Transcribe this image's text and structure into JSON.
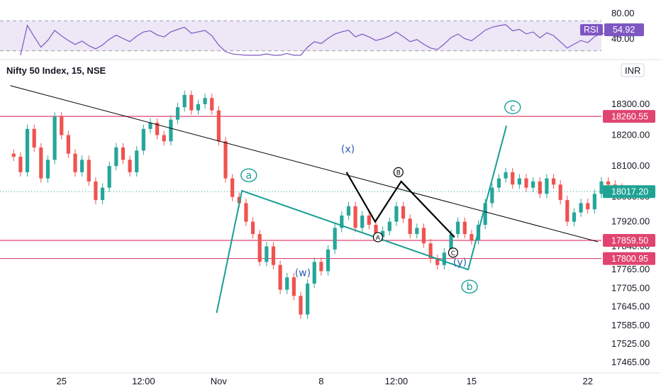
{
  "header": {
    "title": "Nifty 50 Index, 15, NSE",
    "currency": "INR"
  },
  "rsi_panel": {
    "label": "RSI",
    "value": "54.92",
    "levels": [
      "80.00",
      "40.00"
    ],
    "level_values": [
      80,
      40
    ],
    "band": [
      70,
      30
    ],
    "ylim": [
      22,
      96
    ]
  },
  "colors": {
    "up": "#26a69a",
    "down": "#ef5350",
    "wave": "#179e95",
    "wave_label_blue": "#2a5bb0",
    "trendline": "#000000",
    "level_line": "#e0446f",
    "rsi_line": "#7e57c2",
    "rsi_band": "#ede7f6",
    "last_price_badge": "#1fa394"
  },
  "chart_data": {
    "type": "line",
    "instrument": "Nifty 50 Index",
    "interval": "15",
    "exchange": "NSE",
    "ylim": [
      17440,
      18380
    ],
    "y_ticks": [
      18300,
      18200,
      18100,
      18000,
      17920,
      17840,
      17765,
      17705,
      17645,
      17585,
      17525,
      17465
    ],
    "y_tick_labels": [
      "18300.00",
      "18200.00",
      "18100.00",
      "18000.00",
      "17920.00",
      "17840.00",
      "17765.00",
      "17705.00",
      "17645.00",
      "17585.00",
      "17525.00",
      "17465.00"
    ],
    "x_tick_labels": [
      "25",
      "12:00",
      "Nov",
      "8",
      "12:00",
      "15",
      "22"
    ],
    "horizontal_levels": [
      {
        "label": "18260.55",
        "value": 18260.55
      },
      {
        "label": "17859.50",
        "value": 17859.5
      },
      {
        "label": "17800.95",
        "value": 17800.95
      }
    ],
    "last_price": {
      "label": "18017.20",
      "value": 18017.2
    },
    "series": [
      {
        "values": [
          [
            0,
            18130
          ],
          [
            1,
            18080
          ],
          [
            2,
            18220
          ],
          [
            3,
            18160
          ],
          [
            4,
            18060
          ],
          [
            5,
            18120
          ],
          [
            6,
            18260
          ],
          [
            7,
            18200
          ],
          [
            8,
            18140
          ],
          [
            9,
            18080
          ],
          [
            10,
            18120
          ],
          [
            11,
            18050
          ],
          [
            12,
            17990
          ],
          [
            13,
            18030
          ],
          [
            14,
            18100
          ],
          [
            15,
            18160
          ],
          [
            16,
            18120
          ],
          [
            17,
            18080
          ],
          [
            18,
            18150
          ],
          [
            19,
            18220
          ],
          [
            20,
            18240
          ],
          [
            21,
            18200
          ],
          [
            22,
            18180
          ],
          [
            23,
            18250
          ],
          [
            24,
            18290
          ],
          [
            25,
            18330
          ],
          [
            26,
            18280
          ],
          [
            27,
            18300
          ],
          [
            28,
            18320
          ],
          [
            29,
            18280
          ],
          [
            30,
            18180
          ],
          [
            31,
            18060
          ],
          [
            32,
            18000
          ],
          [
            33,
            17980
          ],
          [
            34,
            17920
          ],
          [
            35,
            17880
          ],
          [
            36,
            17790
          ],
          [
            37,
            17840
          ],
          [
            38,
            17780
          ],
          [
            39,
            17700
          ],
          [
            40,
            17740
          ],
          [
            41,
            17680
          ],
          [
            42,
            17620
          ],
          [
            43,
            17720
          ],
          [
            44,
            17790
          ],
          [
            45,
            17760
          ],
          [
            46,
            17830
          ],
          [
            47,
            17900
          ],
          [
            48,
            17940
          ],
          [
            49,
            17970
          ],
          [
            50,
            17900
          ],
          [
            51,
            17940
          ],
          [
            52,
            17910
          ],
          [
            53,
            17870
          ],
          [
            54,
            17890
          ],
          [
            55,
            17920
          ],
          [
            56,
            17970
          ],
          [
            57,
            17930
          ],
          [
            58,
            17880
          ],
          [
            59,
            17900
          ],
          [
            60,
            17850
          ],
          [
            61,
            17800
          ],
          [
            62,
            17780
          ],
          [
            63,
            17820
          ],
          [
            64,
            17880
          ],
          [
            65,
            17920
          ],
          [
            66,
            17880
          ],
          [
            67,
            17860
          ],
          [
            68,
            17910
          ],
          [
            69,
            17980
          ],
          [
            70,
            18030
          ],
          [
            71,
            18060
          ],
          [
            72,
            18080
          ],
          [
            73,
            18040
          ],
          [
            74,
            18060
          ],
          [
            75,
            18030
          ],
          [
            76,
            18050
          ],
          [
            77,
            18010
          ],
          [
            78,
            18060
          ],
          [
            79,
            18040
          ],
          [
            80,
            17990
          ],
          [
            81,
            17920
          ],
          [
            82,
            17950
          ],
          [
            83,
            17980
          ],
          [
            84,
            17960
          ],
          [
            85,
            18010
          ],
          [
            86,
            18050
          ],
          [
            87,
            18040
          ],
          [
            88,
            18030
          ],
          [
            89,
            18017.2
          ]
        ]
      }
    ],
    "x_ticks": [
      7,
      19,
      30,
      45,
      56,
      67,
      84
    ],
    "xlim": [
      -2,
      86
    ],
    "trendline": [
      [
        -0.5,
        18360
      ],
      [
        85.5,
        17855
      ]
    ],
    "wave_primary": {
      "points": [
        [
          29.7,
          17625
        ],
        [
          33.4,
          18020
        ],
        [
          66.5,
          17765
        ],
        [
          72.1,
          18230
        ]
      ],
      "labels": [
        "a",
        "b",
        "c"
      ],
      "label_positions": [
        [
          34.4,
          18070
        ],
        [
          66.7,
          17710
        ],
        [
          73,
          18290
        ]
      ]
    },
    "wave_secondary_labels": [
      {
        "text": "(w)",
        "at": [
          42.3,
          17755
        ]
      },
      {
        "text": "(x)",
        "at": [
          48.9,
          18155
        ]
      },
      {
        "text": "(y)",
        "at": [
          65.3,
          17790
        ]
      }
    ],
    "wave_abc": {
      "points": [
        [
          48.7,
          18080
        ],
        [
          52.9,
          17920
        ],
        [
          56.7,
          18050
        ],
        [
          64.5,
          17870
        ]
      ],
      "labels": [
        "A",
        "B",
        "C"
      ],
      "label_positions": [
        [
          53.3,
          17870
        ],
        [
          56.3,
          18080
        ],
        [
          64.3,
          17820
        ]
      ]
    }
  }
}
